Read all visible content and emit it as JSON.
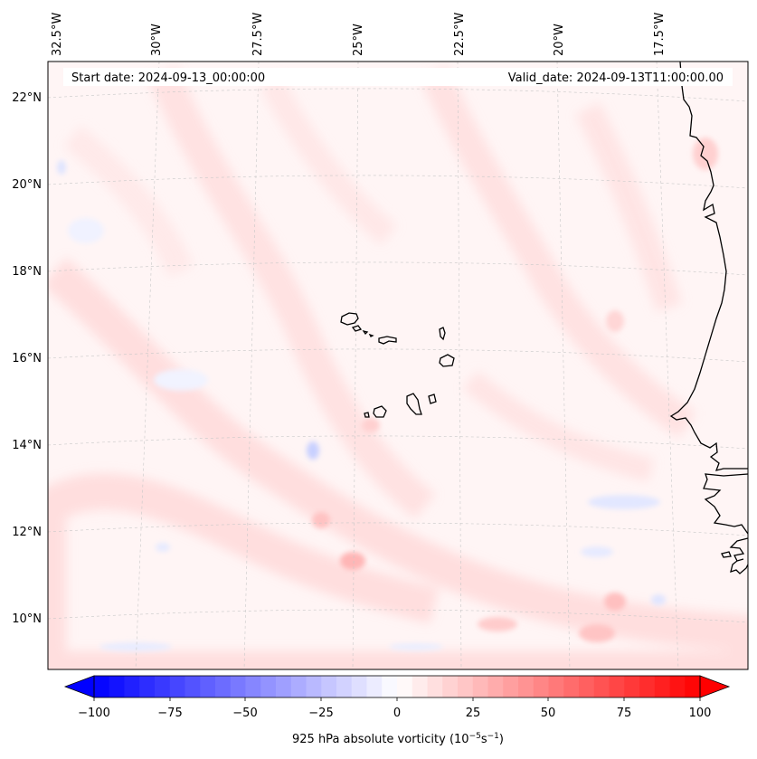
{
  "map": {
    "start_date": "Start date: 2024-09-13_00:00:00",
    "valid_date": "Valid_date: 2024-09-13T11:00:00.00",
    "lat_labels": [
      "22°N",
      "20°N",
      "18°N",
      "16°N",
      "14°N",
      "12°N",
      "10°N"
    ],
    "lon_labels": [
      "32.5°W",
      "30°W",
      "27.5°W",
      "25°W",
      "22.5°W",
      "20°W",
      "17.5°W"
    ]
  },
  "colorbar": {
    "ticks": [
      "−100",
      "−75",
      "−50",
      "−25",
      "0",
      "25",
      "50",
      "75",
      "100"
    ],
    "label": "925 hPa absolute vorticity (10",
    "label_exp1": "−5",
    "label_mid": "s",
    "label_exp2": "−1",
    "label_end": ")",
    "min": -100,
    "max": 100,
    "colors": {
      "neg": "#0000ff",
      "zero": "#ffffff",
      "pos": "#ff0000"
    }
  }
}
